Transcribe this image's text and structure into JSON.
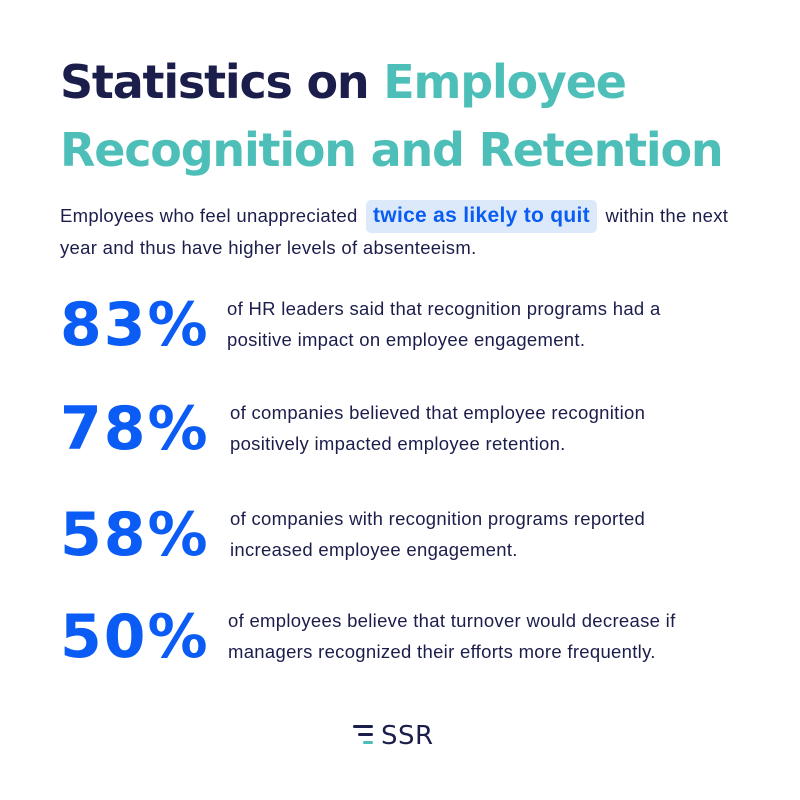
{
  "title": {
    "part1": "Statistics on ",
    "part2": "Employee Recognition and Retention"
  },
  "intro": {
    "before": "Employees who feel unappreciated",
    "highlight": "twice as likely to quit",
    "after": "within the next year and thus have higher levels of absenteeism."
  },
  "stats": [
    {
      "value": "83%",
      "line1": "of HR leaders said that recognition programs had a",
      "line2": "positive impact on employee engagement."
    },
    {
      "value": "78%",
      "line1": "of companies believed that employee recognition",
      "line2": "positively impacted employee retention."
    },
    {
      "value": "58%",
      "line1": "of companies with recognition programs reported",
      "line2": "increased employee engagement."
    },
    {
      "value": "50%",
      "line1": "of employees believe that turnover would decrease if",
      "line2": "managers recognized their efforts more frequently."
    }
  ],
  "logo": {
    "text": "SSR",
    "icon": "ssr-logo-icon"
  },
  "colors": {
    "navy": "#1b1d4b",
    "teal": "#4dbfb8",
    "blue": "#0a5cf5",
    "highlight_bg": "#dbe9fb"
  }
}
